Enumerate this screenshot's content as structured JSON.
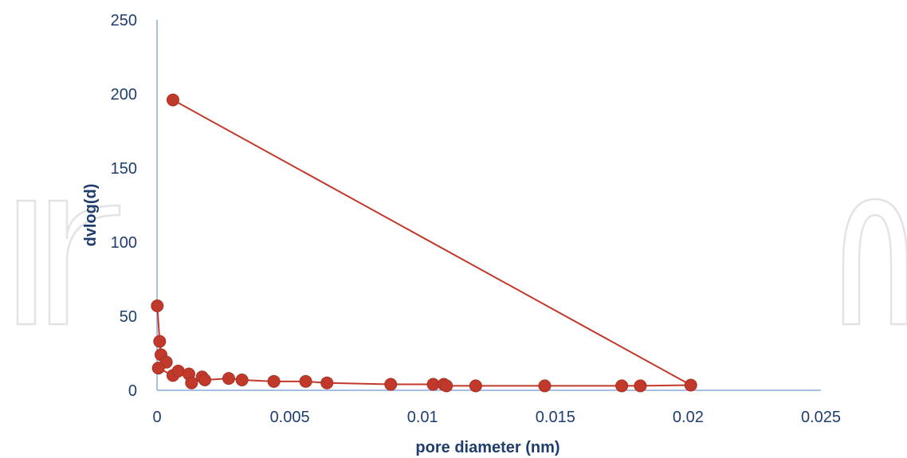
{
  "chart_data": {
    "type": "scatter",
    "xlabel": "pore diameter (nm)",
    "ylabel": "dvlog(d)",
    "xlim": [
      0,
      0.025
    ],
    "ylim": [
      0,
      250
    ],
    "x_ticks": [
      "0",
      "0.005",
      "0.01",
      "0.015",
      "0.02",
      "0.025"
    ],
    "y_ticks": [
      "0",
      "50",
      "100",
      "150",
      "200",
      "250"
    ],
    "grid": false,
    "legend": "none",
    "colors": {
      "series": "#c0392b",
      "axis": "#8eaadb",
      "text": "#1f3e6e"
    },
    "series": [
      {
        "values": [
          {
            "x": 1e-05,
            "y": 57
          },
          {
            "x": 0.0001,
            "y": 33
          },
          {
            "x": 0.00015,
            "y": 24
          },
          {
            "x": 0.00035,
            "y": 19
          },
          {
            "x": 5e-05,
            "y": 15
          },
          {
            "x": 0.0006,
            "y": 10
          },
          {
            "x": 0.0008,
            "y": 13
          },
          {
            "x": 0.0012,
            "y": 11
          },
          {
            "x": 0.0013,
            "y": 5
          },
          {
            "x": 0.0017,
            "y": 9
          },
          {
            "x": 0.0018,
            "y": 7
          },
          {
            "x": 0.0027,
            "y": 8
          },
          {
            "x": 0.0032,
            "y": 7
          },
          {
            "x": 0.0044,
            "y": 6
          },
          {
            "x": 0.0056,
            "y": 6
          },
          {
            "x": 0.0064,
            "y": 5
          },
          {
            "x": 0.0088,
            "y": 4
          },
          {
            "x": 0.0104,
            "y": 4
          },
          {
            "x": 0.0108,
            "y": 4
          },
          {
            "x": 0.0109,
            "y": 3
          },
          {
            "x": 0.012,
            "y": 3
          },
          {
            "x": 0.0146,
            "y": 3
          },
          {
            "x": 0.0175,
            "y": 3
          },
          {
            "x": 0.0182,
            "y": 3
          },
          {
            "x": 0.0201,
            "y": 3.5
          },
          {
            "x": 0.0006,
            "y": 196
          }
        ]
      }
    ]
  }
}
